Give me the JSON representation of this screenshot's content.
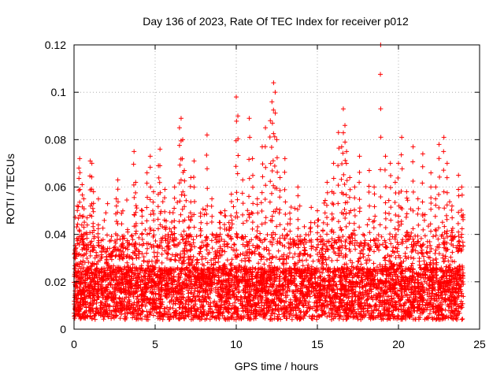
{
  "chart_data": {
    "type": "scatter",
    "title": "Day 136 of 2023, Rate Of TEC Index for receiver p012",
    "xlabel": "GPS time / hours",
    "ylabel": "ROTI / TECUs",
    "xlim": [
      0,
      25
    ],
    "ylim": [
      0,
      0.12
    ],
    "xticks": [
      0,
      5,
      10,
      15,
      20,
      25
    ],
    "yticks": [
      0,
      0.02,
      0.04,
      0.06,
      0.08,
      0.1,
      0.12
    ],
    "xtick_labels": [
      "0",
      "5",
      "10",
      "15",
      "20",
      "25"
    ],
    "ytick_labels": [
      "0",
      "0.02",
      "0.04",
      "0.06",
      "0.08",
      "0.1",
      "0.12"
    ],
    "grid": true,
    "marker": "+",
    "color": "#ff0000",
    "x_data_extent": [
      0,
      24
    ],
    "series": [
      {
        "marker": "+",
        "points": [
          [
            0.1,
            0.034
          ],
          [
            0.2,
            0.052
          ],
          [
            0.3,
            0.068
          ],
          [
            0.35,
            0.072
          ],
          [
            0.5,
            0.061
          ],
          [
            0.6,
            0.055
          ],
          [
            0.8,
            0.047
          ],
          [
            1.0,
            0.071
          ],
          [
            1.1,
            0.07
          ],
          [
            1.2,
            0.058
          ],
          [
            1.5,
            0.044
          ],
          [
            1.7,
            0.035
          ],
          [
            2.0,
            0.028
          ],
          [
            2.3,
            0.032
          ],
          [
            2.6,
            0.055
          ],
          [
            2.7,
            0.063
          ],
          [
            3.0,
            0.038
          ],
          [
            3.3,
            0.042
          ],
          [
            3.7,
            0.075
          ],
          [
            3.8,
            0.062
          ],
          [
            4.2,
            0.05
          ],
          [
            4.5,
            0.066
          ],
          [
            4.7,
            0.073
          ],
          [
            4.9,
            0.058
          ],
          [
            5.2,
            0.069
          ],
          [
            5.3,
            0.076
          ],
          [
            5.6,
            0.059
          ],
          [
            5.8,
            0.04
          ],
          [
            6.2,
            0.06
          ],
          [
            6.5,
            0.085
          ],
          [
            6.6,
            0.089
          ],
          [
            6.7,
            0.08
          ],
          [
            6.8,
            0.067
          ],
          [
            7.2,
            0.064
          ],
          [
            7.4,
            0.071
          ],
          [
            7.8,
            0.049
          ],
          [
            8.2,
            0.082
          ],
          [
            8.5,
            0.055
          ],
          [
            9.0,
            0.045
          ],
          [
            9.3,
            0.05
          ],
          [
            9.7,
            0.057
          ],
          [
            10.0,
            0.098
          ],
          [
            10.1,
            0.09
          ],
          [
            10.4,
            0.063
          ],
          [
            10.8,
            0.089
          ],
          [
            11.0,
            0.072
          ],
          [
            11.3,
            0.055
          ],
          [
            11.6,
            0.077
          ],
          [
            11.8,
            0.085
          ],
          [
            12.1,
            0.088
          ],
          [
            12.2,
            0.096
          ],
          [
            12.3,
            0.104
          ],
          [
            12.4,
            0.1
          ],
          [
            12.5,
            0.08
          ],
          [
            12.7,
            0.064
          ],
          [
            13.0,
            0.072
          ],
          [
            13.3,
            0.049
          ],
          [
            13.8,
            0.06
          ],
          [
            14.2,
            0.038
          ],
          [
            14.6,
            0.045
          ],
          [
            15.0,
            0.05
          ],
          [
            15.3,
            0.034
          ],
          [
            15.6,
            0.062
          ],
          [
            15.9,
            0.058
          ],
          [
            16.0,
            0.07
          ],
          [
            16.3,
            0.083
          ],
          [
            16.5,
            0.077
          ],
          [
            16.6,
            0.093
          ],
          [
            16.7,
            0.086
          ],
          [
            16.8,
            0.075
          ],
          [
            17.0,
            0.064
          ],
          [
            17.3,
            0.06
          ],
          [
            17.6,
            0.073
          ],
          [
            18.2,
            0.067
          ],
          [
            18.5,
            0.06
          ],
          [
            18.9,
            0.12
          ],
          [
            19.2,
            0.073
          ],
          [
            19.5,
            0.07
          ],
          [
            19.8,
            0.062
          ],
          [
            20.0,
            0.07
          ],
          [
            20.2,
            0.081
          ],
          [
            20.5,
            0.058
          ],
          [
            20.9,
            0.077
          ],
          [
            21.2,
            0.055
          ],
          [
            21.5,
            0.074
          ],
          [
            22.0,
            0.066
          ],
          [
            22.3,
            0.06
          ],
          [
            22.5,
            0.078
          ],
          [
            22.8,
            0.081
          ],
          [
            23.0,
            0.07
          ],
          [
            23.3,
            0.052
          ],
          [
            23.7,
            0.065
          ],
          [
            23.9,
            0.06
          ]
        ]
      }
    ]
  }
}
